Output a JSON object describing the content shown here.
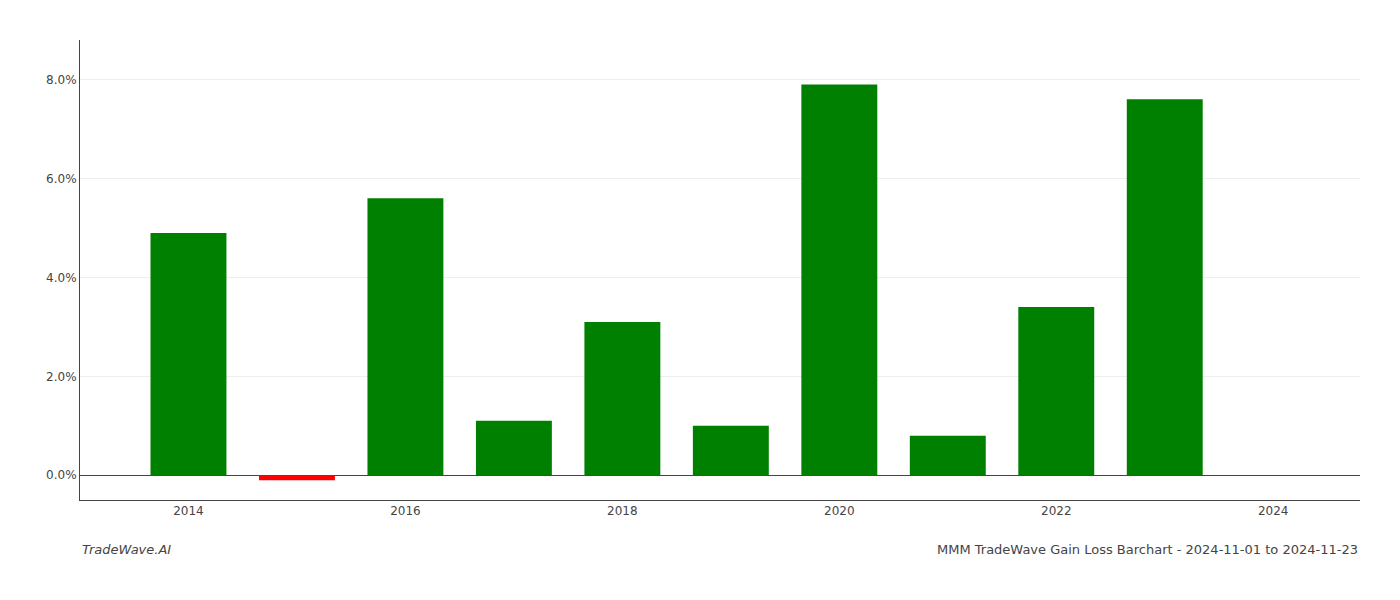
{
  "chart_data": {
    "type": "bar",
    "x": [
      2014,
      2015,
      2016,
      2017,
      2018,
      2019,
      2020,
      2021,
      2022,
      2023
    ],
    "values": [
      0.049,
      -0.001,
      0.056,
      0.011,
      0.031,
      0.01,
      0.079,
      0.008,
      0.034,
      0.076
    ],
    "colors": [
      "#008000",
      "#ff0000",
      "#008000",
      "#008000",
      "#008000",
      "#008000",
      "#008000",
      "#008000",
      "#008000",
      "#008000"
    ],
    "xlim": [
      2013.0,
      2024.8
    ],
    "xticks": [
      2014,
      2016,
      2018,
      2020,
      2022,
      2024
    ],
    "ylim": [
      -0.005,
      0.088
    ],
    "yticks": [
      {
        "value": 0.0,
        "label": "0.0%"
      },
      {
        "value": 0.02,
        "label": "2.0%"
      },
      {
        "value": 0.04,
        "label": "4.0%"
      },
      {
        "value": 0.06,
        "label": "6.0%"
      },
      {
        "value": 0.08,
        "label": "8.0%"
      }
    ],
    "grid": true,
    "annotations": [
      "TradeWave.AI",
      "MMM TradeWave Gain Loss Barchart - 2024-11-01 to 2024-11-23"
    ]
  }
}
